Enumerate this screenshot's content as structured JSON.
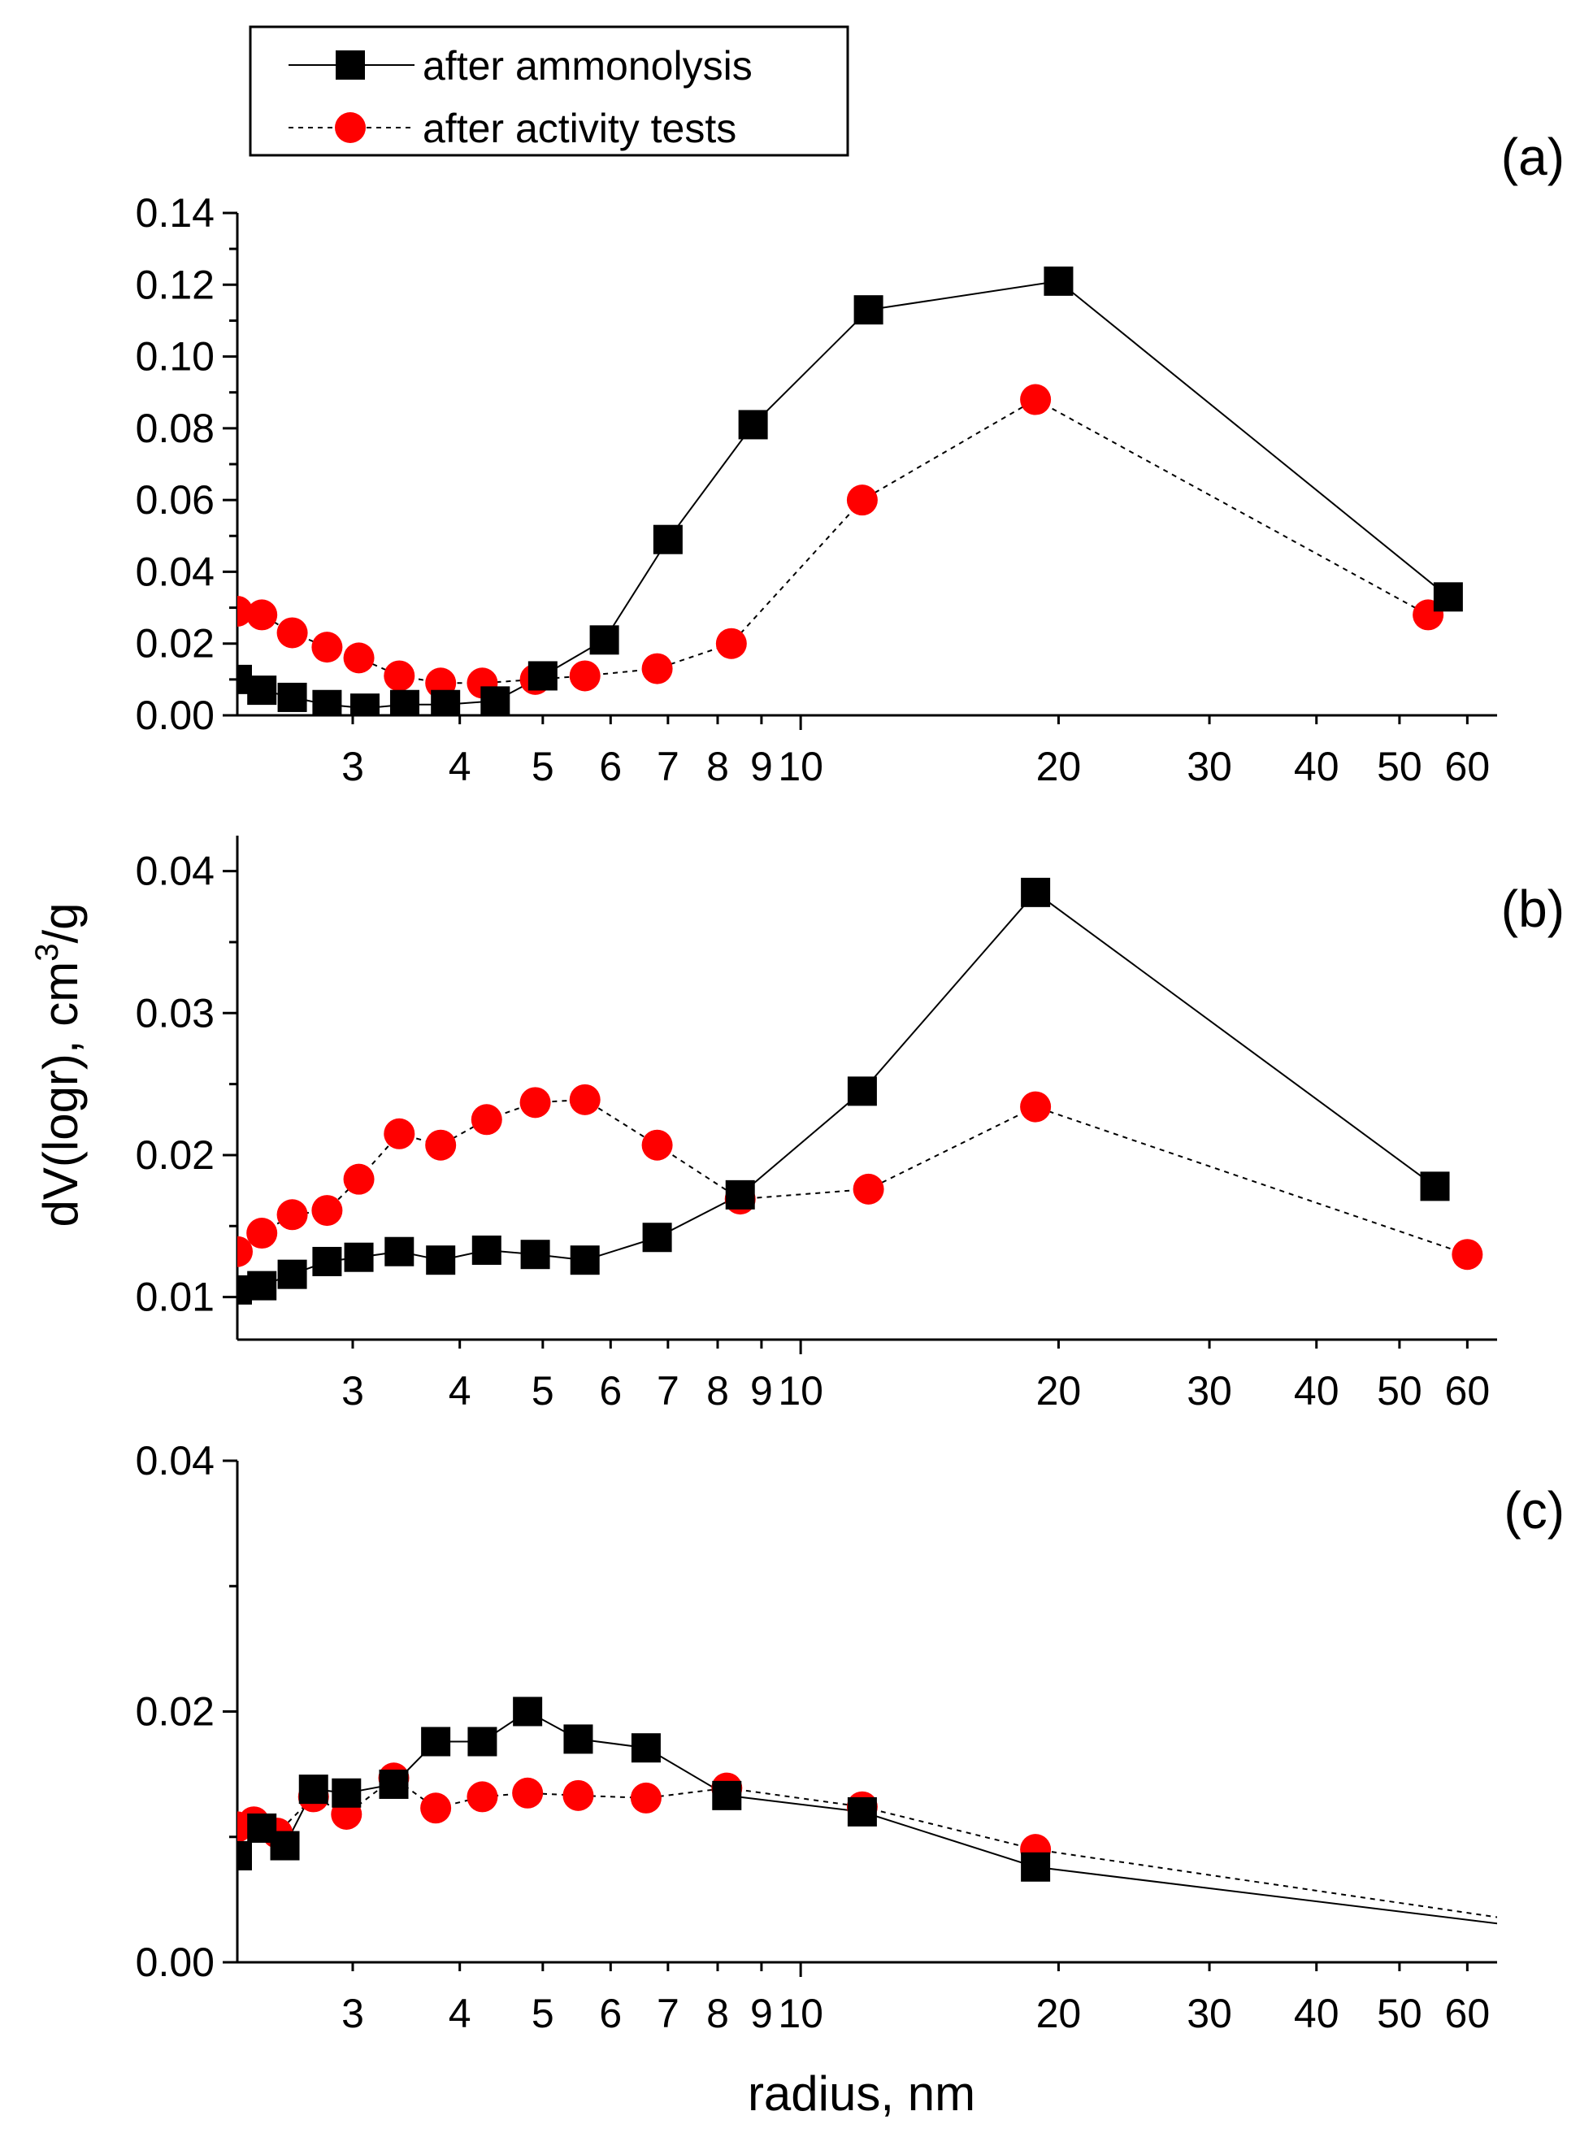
{
  "chart_data": {
    "type": "line",
    "xlabel": "radius, nm",
    "ylabel": "dV(logr), cm",
    "ylabel_sup": "3",
    "ylabel_tail": "/g",
    "xscale": "log",
    "xlim": [
      2.2,
      65
    ],
    "x_tick_labels": [
      "3",
      "4",
      "5",
      "6",
      "7",
      "8",
      "9",
      "10",
      "20",
      "30",
      "40",
      "50",
      "60"
    ],
    "x_tick_values": [
      3,
      4,
      5,
      6,
      7,
      8,
      9,
      10,
      20,
      30,
      40,
      50,
      60
    ],
    "legend": {
      "placement": "top-left",
      "entries": [
        {
          "label": "after ammonolysis",
          "marker": "square",
          "line": "solid",
          "color": "#000000"
        },
        {
          "label": "after activity tests",
          "marker": "circle",
          "line": "dashed",
          "color": "#ff0000"
        }
      ]
    },
    "panels": [
      {
        "label": "(a)",
        "ylim": [
          0,
          0.14
        ],
        "y_tick_values": [
          0,
          0.02,
          0.04,
          0.06,
          0.08,
          0.1,
          0.12,
          0.14
        ],
        "y_tick_labels": [
          "0.00",
          "0.02",
          "0.04",
          "0.06",
          "0.08",
          "0.10",
          "0.12",
          "0.14"
        ],
        "series": [
          {
            "name": "after ammonolysis",
            "x": [
              2.2,
              2.35,
              2.55,
              2.8,
              3.1,
              3.45,
              3.85,
              4.4,
              5.0,
              5.9,
              7.0,
              8.8,
              12.0,
              20.0,
              57.0
            ],
            "y": [
              0.01,
              0.007,
              0.005,
              0.003,
              0.002,
              0.003,
              0.003,
              0.004,
              0.011,
              0.021,
              0.049,
              0.081,
              0.113,
              0.121,
              0.033
            ]
          },
          {
            "name": "after activity tests",
            "x": [
              2.2,
              2.35,
              2.55,
              2.8,
              3.05,
              3.4,
              3.8,
              4.25,
              4.9,
              5.6,
              6.8,
              8.3,
              11.8,
              18.8,
              54.0
            ],
            "y": [
              0.029,
              0.028,
              0.023,
              0.019,
              0.016,
              0.011,
              0.009,
              0.009,
              0.01,
              0.011,
              0.013,
              0.02,
              0.06,
              0.088,
              0.028
            ]
          }
        ]
      },
      {
        "label": "(b)",
        "ylim": [
          0.007,
          0.0425
        ],
        "y_tick_values": [
          0.01,
          0.02,
          0.03,
          0.04
        ],
        "y_tick_labels": [
          "0.01",
          "0.02",
          "0.03",
          "0.04"
        ],
        "series": [
          {
            "name": "after ammonolysis",
            "x": [
              2.2,
              2.35,
              2.55,
              2.8,
              3.05,
              3.4,
              3.8,
              4.3,
              4.9,
              5.6,
              6.8,
              8.5,
              11.8,
              18.8,
              55.0
            ],
            "y": [
              0.0105,
              0.0108,
              0.0116,
              0.0125,
              0.0128,
              0.0132,
              0.0126,
              0.0133,
              0.013,
              0.0126,
              0.0142,
              0.0172,
              0.0245,
              0.0385,
              0.0178
            ]
          },
          {
            "name": "after activity tests",
            "x": [
              2.2,
              2.35,
              2.55,
              2.8,
              3.05,
              3.4,
              3.8,
              4.3,
              4.9,
              5.6,
              6.8,
              8.5,
              12.0,
              18.8,
              60.0
            ],
            "y": [
              0.0132,
              0.0145,
              0.0158,
              0.0161,
              0.0183,
              0.0215,
              0.0207,
              0.0225,
              0.0237,
              0.0239,
              0.0207,
              0.0169,
              0.0176,
              0.0234,
              0.013
            ]
          }
        ]
      },
      {
        "label": "(c)",
        "ylim": [
          0,
          0.04
        ],
        "y_tick_values": [
          0,
          0.02,
          0.04
        ],
        "y_tick_labels": [
          "0.00",
          "0.02",
          "0.04"
        ],
        "series": [
          {
            "name": "after ammonolysis",
            "x": [
              2.2,
              2.35,
              2.5,
              2.7,
              2.95,
              3.35,
              3.75,
              4.25,
              4.8,
              5.5,
              6.6,
              8.2,
              11.8,
              18.8,
              65.0
            ],
            "y": [
              0.0085,
              0.0107,
              0.0093,
              0.0138,
              0.0135,
              0.0142,
              0.0176,
              0.0176,
              0.02,
              0.0178,
              0.0171,
              0.0133,
              0.012,
              0.0076,
              0.0031
            ],
            "end_markers": 14
          },
          {
            "name": "after activity tests",
            "x": [
              2.2,
              2.3,
              2.45,
              2.7,
              2.95,
              3.35,
              3.75,
              4.25,
              4.8,
              5.5,
              6.6,
              8.2,
              11.8,
              18.8,
              65.0
            ],
            "y": [
              0.0108,
              0.0112,
              0.0103,
              0.0132,
              0.0118,
              0.0147,
              0.0123,
              0.0132,
              0.0135,
              0.0133,
              0.0131,
              0.0139,
              0.0124,
              0.009,
              0.0036
            ],
            "end_markers": 14
          }
        ]
      }
    ]
  }
}
